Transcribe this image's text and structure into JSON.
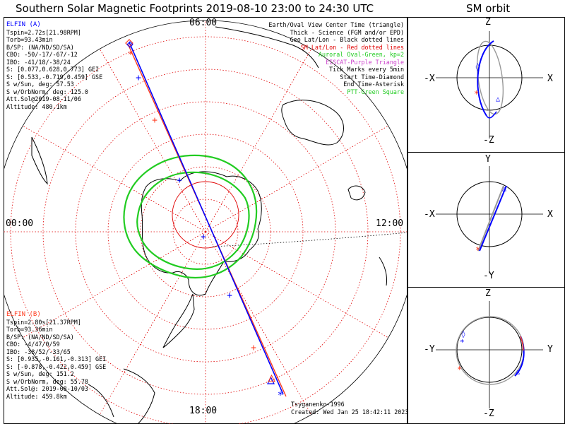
{
  "title": "Southern Solar Magnetic Footprints 2019-08-10 23:00 to 24:30 UTC",
  "orbit_title": "SM orbit",
  "ticks": {
    "top": "06:00",
    "left": "00:00",
    "right": "12:00",
    "bottom": "18:00"
  },
  "elfin_a": {
    "header": "ELFIN (A)",
    "lines": [
      "Tspin=2.72s[21.98RPM]",
      "Torb=93.43min",
      "B/SP: (NA/ND/SD/SA)",
      "CBO: -50/-17/-67/-12",
      "IBO: -41/18/-38/24",
      "S: [0.077,0.628,0.773] GEI",
      "S: [0.533,-0.719,0.459] GSE",
      "S w/Sun, deg: 57.53",
      "S w/OrbNorm, deg: 125.0",
      "Att.Sol@2019-08-11/06",
      "Altitude: 480.1km"
    ]
  },
  "elfin_b": {
    "header": "ELFIN (B)",
    "lines": [
      "Tspin=2.80s[21.37RPM]",
      "Torb=93.36min",
      "B/SP: (NA/ND/SD/SA)",
      "CBO: -4/47/0/59",
      "IBO: -38/52/-33/65",
      "S: [0.935,-0.161,-0.313] GEI",
      "S: [-0.878,-0.422,0.459] GSE",
      "S w/Sun, deg: 151.2",
      "S w/OrbNorm, deg: 55.78",
      "Att.Sol@: 2019-08-10/03",
      "Altitude: 459.8km"
    ]
  },
  "legend": [
    {
      "text": "Earth/Oval View Center Time (triangle)",
      "color": "#000000"
    },
    {
      "text": "Thick - Science (FGM and/or EPD)",
      "color": "#000000"
    },
    {
      "text": "Geo Lat/Lon - Black dotted lines",
      "color": "#000000"
    },
    {
      "text": "SM Lat/Lon - Red dotted lines",
      "color": "#e00000"
    },
    {
      "text": "Auroral Oval-Green, kp=2",
      "color": "#22cc22"
    },
    {
      "text": "EISCAT-Purple Triangle",
      "color": "#cc44cc"
    },
    {
      "text": "Tick Marks every 5min",
      "color": "#000000"
    },
    {
      "text": "Start Time-Diamond",
      "color": "#000000"
    },
    {
      "text": "End Time-Asterisk",
      "color": "#000000"
    },
    {
      "text": "PTT-Green Square",
      "color": "#22cc22"
    }
  ],
  "credit": {
    "author": "Tsyganenko-1996",
    "created": "Created: Wed Jan 25 18:42:11 2023"
  },
  "panels": [
    {
      "top": "Z",
      "bottom": "-Z",
      "left": "-X",
      "right": "X"
    },
    {
      "top": "Y",
      "bottom": "-Y",
      "left": "-X",
      "right": "X"
    },
    {
      "top": "Z",
      "bottom": "-Z",
      "left": "-Y",
      "right": "Y"
    }
  ],
  "colors": {
    "elfin_a": "#0000ff",
    "elfin_b": "#ff3b1f",
    "grid_sm": "#e00000",
    "oval": "#22cc22",
    "orbit_gray": "#999999"
  },
  "chart_data": {
    "type": "polar-map",
    "projection": "south magnetic polar (SM)",
    "mlt_ticks": [
      "00:00",
      "06:00",
      "12:00",
      "18:00"
    ],
    "auroral_oval_kp": 2,
    "series": [
      {
        "name": "ELFIN (A)",
        "color": "#0000ff"
      },
      {
        "name": "ELFIN (B)",
        "color": "#ff3b1f"
      }
    ]
  }
}
